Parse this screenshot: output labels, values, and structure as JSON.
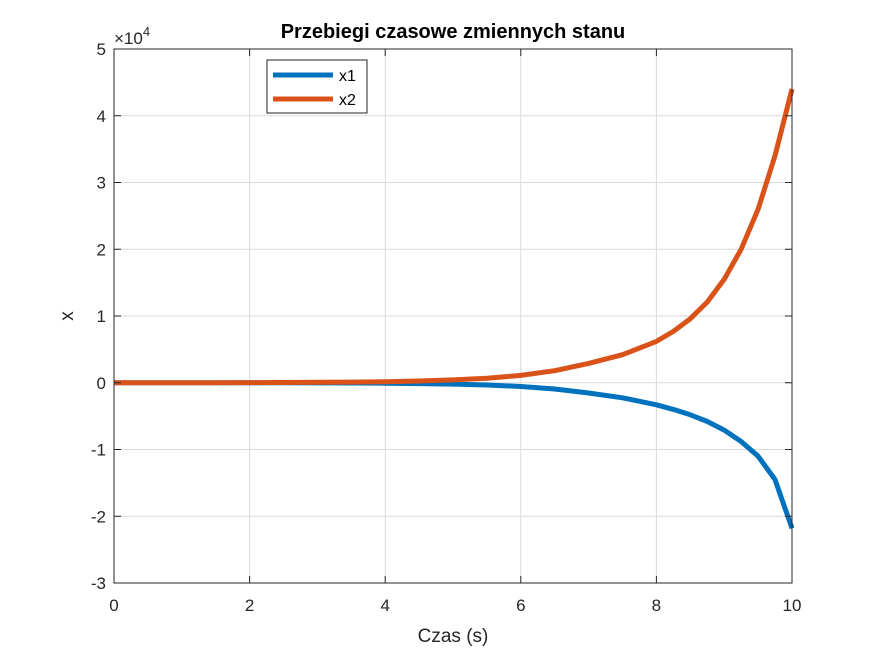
{
  "chart_data": {
    "type": "line",
    "title": "Przebiegi czasowe zmiennych stanu",
    "xlabel": "Czas (s)",
    "ylabel": "x",
    "xlim": [
      0,
      10
    ],
    "ylim": [
      -3,
      5
    ],
    "y_exponent_base": "×10",
    "y_exponent_power": "4",
    "x_ticks": [
      "0",
      "2",
      "4",
      "6",
      "8",
      "10"
    ],
    "y_ticks": [
      "-3",
      "-2",
      "-1",
      "0",
      "1",
      "2",
      "3",
      "4",
      "5"
    ],
    "grid": true,
    "legend_position": "top-left",
    "series": [
      {
        "name": "x1",
        "color": "#0072BD",
        "x": [
          0,
          0.5,
          1,
          1.5,
          2,
          2.5,
          3,
          3.5,
          4,
          4.5,
          5,
          5.5,
          6,
          6.5,
          7,
          7.5,
          8,
          8.25,
          8.5,
          8.75,
          9,
          9.25,
          9.5,
          9.75,
          10
        ],
        "y": [
          0,
          0,
          0,
          0,
          0,
          -0.001,
          -0.002,
          -0.004,
          -0.007,
          -0.012,
          -0.02,
          -0.034,
          -0.056,
          -0.093,
          -0.154,
          -0.226,
          -0.33,
          -0.4,
          -0.48,
          -0.58,
          -0.71,
          -0.88,
          -1.1,
          -1.45,
          -2.18
        ]
      },
      {
        "name": "x2",
        "color": "#D95319",
        "x": [
          0,
          0.5,
          1,
          1.5,
          2,
          2.5,
          3,
          3.5,
          4,
          4.5,
          5,
          5.5,
          6,
          6.5,
          7,
          7.5,
          8,
          8.25,
          8.5,
          8.75,
          9,
          9.25,
          9.5,
          9.75,
          10
        ],
        "y": [
          0,
          0,
          0,
          0.001,
          0.002,
          0.003,
          0.006,
          0.01,
          0.016,
          0.026,
          0.042,
          0.068,
          0.11,
          0.18,
          0.29,
          0.42,
          0.62,
          0.77,
          0.96,
          1.21,
          1.55,
          2.0,
          2.6,
          3.4,
          4.4
        ]
      }
    ]
  }
}
